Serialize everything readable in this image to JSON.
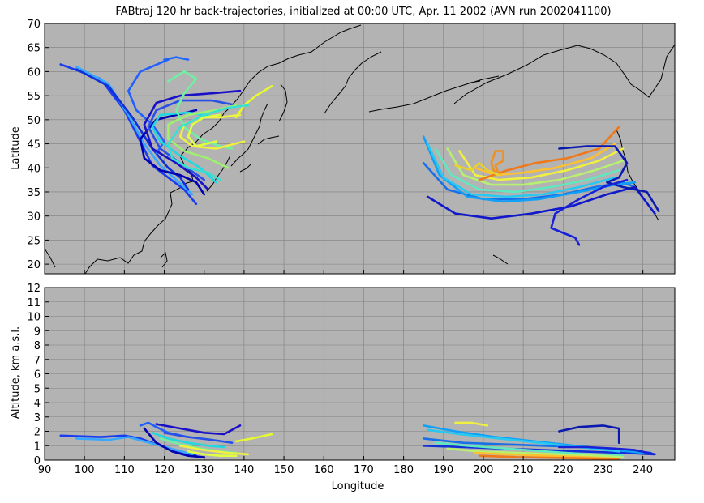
{
  "chart_data": [
    {
      "type": "line",
      "panel": "map",
      "title": "FABtraj 120 hr back-trajectories, initialized at 00:00 UTC, Apr. 11 2002 (AVN run 2002041100)",
      "xlabel": "",
      "ylabel": "Latitude",
      "xlim": [
        90,
        248
      ],
      "ylim": [
        18,
        70
      ],
      "yticks": [
        20,
        25,
        30,
        35,
        40,
        45,
        50,
        55,
        60,
        65,
        70
      ],
      "xticks": [
        90,
        100,
        110,
        120,
        130,
        140,
        150,
        160,
        170,
        180,
        190,
        200,
        210,
        220,
        230,
        240
      ],
      "grid": true,
      "background": "#b3b3b3",
      "coastline_color": "#000000",
      "series": [
        {
          "color": "#1a3cf0",
          "x": [
            94,
            104,
            110,
            114,
            117,
            121,
            125,
            128
          ],
          "y": [
            61.5,
            58.5,
            52,
            45.5,
            40.5,
            38,
            35.5,
            32.5
          ]
        },
        {
          "color": "#38a8ff",
          "x": [
            98,
            106,
            111,
            115,
            119,
            123,
            127
          ],
          "y": [
            61,
            57.5,
            51,
            45,
            40.5,
            37.5,
            34.5
          ]
        },
        {
          "color": "#1030d8",
          "x": [
            98,
            106,
            112,
            117,
            121,
            124,
            126
          ],
          "y": [
            60.5,
            57,
            50.5,
            44,
            40,
            38,
            35.5
          ]
        },
        {
          "color": "#2068ff",
          "x": [
            120,
            123,
            126
          ],
          "y": [
            62.5,
            63,
            62.5
          ]
        },
        {
          "color": "#2060ff",
          "x": [
            121,
            114,
            111,
            113,
            117,
            120,
            118
          ],
          "y": [
            62.5,
            60,
            56,
            52,
            49,
            45.5,
            43
          ]
        },
        {
          "color": "#0000b0",
          "x": [
            128,
            118,
            114,
            115,
            119,
            124,
            128,
            130
          ],
          "y": [
            52,
            50,
            46,
            42,
            39.5,
            38.5,
            37,
            34.5
          ]
        },
        {
          "color": "#1a10c8",
          "x": [
            139,
            132,
            124,
            118,
            115,
            117,
            123,
            128,
            131
          ],
          "y": [
            56,
            55.5,
            55,
            53.5,
            49,
            44,
            41,
            38,
            35.5
          ]
        },
        {
          "color": "#2850e8",
          "x": [
            138,
            132,
            124,
            118,
            116,
            119,
            124,
            130
          ],
          "y": [
            53,
            54,
            54,
            52,
            48.5,
            44,
            41,
            37.5
          ]
        },
        {
          "color": "#20d8e0",
          "x": [
            133,
            126,
            119,
            117,
            119,
            124,
            129,
            133
          ],
          "y": [
            50.5,
            51.5,
            51,
            48.5,
            45.5,
            42.5,
            40,
            37
          ]
        },
        {
          "color": "#70f0a0",
          "x": [
            121,
            125,
            128,
            125,
            123,
            125,
            129,
            134,
            137
          ],
          "y": [
            58,
            60,
            58.5,
            55.5,
            52,
            48.5,
            46,
            44.5,
            44
          ]
        },
        {
          "color": "#a0f070",
          "x": [
            138,
            133,
            126,
            121,
            121,
            125,
            131,
            136
          ],
          "y": [
            53,
            52,
            51,
            49,
            46,
            43.5,
            42,
            40
          ]
        },
        {
          "color": "#f0f040",
          "x": [
            139,
            134,
            129,
            125,
            124,
            127,
            133,
            140
          ],
          "y": [
            51,
            50.5,
            50.5,
            49,
            46.5,
            44.5,
            44,
            45.5
          ]
        },
        {
          "color": "#e8f830",
          "x": [
            147,
            143,
            140,
            138
          ],
          "y": [
            57,
            55,
            53,
            50.5
          ]
        },
        {
          "color": "#e0ff40",
          "x": [
            134,
            130,
            127,
            126,
            128,
            133
          ],
          "y": [
            51,
            50.5,
            49,
            46.5,
            44.5,
            45.5
          ]
        },
        {
          "color": "#38e0d0",
          "x": [
            141,
            136,
            130,
            124,
            121,
            122,
            126,
            131,
            134
          ],
          "y": [
            53,
            52.5,
            51,
            48.5,
            45,
            42,
            40,
            39,
            37.5
          ]
        },
        {
          "color": "#1870e8",
          "x": [
            185,
            191,
            200,
            210,
            220,
            228,
            235,
            238
          ],
          "y": [
            41,
            35.5,
            33.5,
            33.5,
            34.5,
            36,
            37,
            36
          ]
        },
        {
          "color": "#1018c8",
          "x": [
            186,
            193,
            202,
            212,
            222,
            231,
            238,
            243
          ],
          "y": [
            34,
            30.5,
            29.5,
            30.5,
            32,
            34.5,
            36,
            30.5
          ]
        },
        {
          "color": "#10a0f8",
          "x": [
            185,
            189,
            196,
            205,
            214,
            224,
            233,
            238
          ],
          "y": [
            46.5,
            38.5,
            34,
            33,
            33.5,
            35,
            36.5,
            37
          ]
        },
        {
          "color": "#28c8f0",
          "x": [
            186,
            190,
            197,
            206,
            215,
            224,
            233
          ],
          "y": [
            45,
            38,
            34.5,
            34,
            34.5,
            36,
            38
          ]
        },
        {
          "color": "#60e8c0",
          "x": [
            188,
            192,
            199,
            208,
            217,
            226,
            234
          ],
          "y": [
            44,
            38.5,
            35.5,
            35,
            36,
            37.5,
            39.5
          ]
        },
        {
          "color": "#b8f070",
          "x": [
            191,
            195,
            202,
            210,
            219,
            228,
            235
          ],
          "y": [
            44,
            38.5,
            36.5,
            36.5,
            37.5,
            39.5,
            41.5
          ]
        },
        {
          "color": "#f0f040",
          "x": [
            194,
            198,
            204,
            212,
            221,
            229,
            235
          ],
          "y": [
            43.5,
            38.5,
            37.5,
            38,
            39.5,
            41.5,
            44
          ]
        },
        {
          "color": "#fcc030",
          "x": [
            198,
            203,
            210,
            218,
            227,
            233
          ],
          "y": [
            40,
            38.5,
            39,
            40,
            42,
            45
          ]
        },
        {
          "color": "#f07818",
          "x": [
            199,
            206,
            213,
            221,
            229,
            234
          ],
          "y": [
            37.5,
            39.5,
            41,
            42,
            44,
            48.5
          ]
        },
        {
          "color": "#f09020",
          "x": [
            203,
            202,
            203,
            205,
            205,
            203,
            204
          ],
          "y": [
            38.5,
            41,
            43.5,
            43.5,
            41.5,
            40.5,
            38.5
          ]
        },
        {
          "color": "#0a1ab0",
          "x": [
            219,
            226,
            233,
            236,
            234,
            231,
            235,
            241,
            244
          ],
          "y": [
            44,
            44.5,
            44.5,
            41,
            38,
            37,
            36,
            35,
            31
          ]
        },
        {
          "color": "#1820d8",
          "x": [
            236,
            230,
            224,
            218,
            217,
            220,
            223,
            224
          ],
          "y": [
            37.5,
            36,
            33.5,
            30.5,
            27.5,
            26.5,
            25.5,
            24
          ]
        },
        {
          "color": "#e8d030",
          "x": [
            193,
            197,
            199,
            201,
            204
          ],
          "y": [
            40.5,
            39.5,
            41,
            39.5,
            38.5
          ]
        }
      ]
    },
    {
      "type": "line",
      "panel": "altitude",
      "title": "",
      "xlabel": "Longitude",
      "ylabel": "Altitude, km a.s.l.",
      "xlim": [
        90,
        248
      ],
      "ylim": [
        0,
        12
      ],
      "yticks": [
        0,
        1,
        2,
        3,
        4,
        5,
        6,
        7,
        8,
        9,
        10,
        11,
        12
      ],
      "xticks": [
        90,
        100,
        110,
        120,
        130,
        140,
        150,
        160,
        170,
        180,
        190,
        200,
        210,
        220,
        230,
        240
      ],
      "grid": true,
      "background": "#b3b3b3",
      "series": [
        {
          "color": "#1a3cf0",
          "x": [
            94,
            104,
            110,
            114,
            117,
            121,
            125,
            128
          ],
          "y": [
            1.7,
            1.6,
            1.7,
            1.5,
            1.2,
            0.8,
            0.5,
            0.3
          ]
        },
        {
          "color": "#38a8ff",
          "x": [
            98,
            106,
            111,
            115,
            119,
            123,
            127
          ],
          "y": [
            1.5,
            1.4,
            1.6,
            1.3,
            1.0,
            0.7,
            0.4
          ]
        },
        {
          "color": "#2060ff",
          "x": [
            114,
            116,
            118,
            121,
            126
          ],
          "y": [
            2.4,
            2.6,
            2.3,
            1.9,
            1.6
          ]
        },
        {
          "color": "#1a10c8",
          "x": [
            118,
            124,
            130,
            135,
            139
          ],
          "y": [
            2.5,
            2.2,
            1.9,
            1.8,
            2.4
          ]
        },
        {
          "color": "#0000b0",
          "x": [
            115,
            118,
            122,
            126,
            130
          ],
          "y": [
            2.2,
            1.2,
            0.6,
            0.3,
            0.2
          ]
        },
        {
          "color": "#20d8e0",
          "x": [
            117,
            121,
            126,
            131,
            135
          ],
          "y": [
            1.9,
            1.5,
            1.2,
            1.0,
            0.9
          ]
        },
        {
          "color": "#70f0a0",
          "x": [
            119,
            124,
            129,
            134,
            138
          ],
          "y": [
            1.5,
            1.1,
            0.8,
            0.6,
            0.5
          ]
        },
        {
          "color": "#f0f040",
          "x": [
            124,
            130,
            136,
            141
          ],
          "y": [
            1.0,
            0.7,
            0.5,
            0.4
          ]
        },
        {
          "color": "#e8f830",
          "x": [
            138,
            142,
            147
          ],
          "y": [
            1.3,
            1.5,
            1.8
          ]
        },
        {
          "color": "#e0ff40",
          "x": [
            126,
            130,
            134,
            138
          ],
          "y": [
            0.6,
            0.4,
            0.3,
            0.3
          ]
        },
        {
          "color": "#2850e8",
          "x": [
            120,
            126,
            132,
            137
          ],
          "y": [
            1.9,
            1.6,
            1.4,
            1.2
          ]
        },
        {
          "color": "#1030d8",
          "x": [
            185,
            195,
            205,
            215,
            225,
            235,
            243
          ],
          "y": [
            1.0,
            0.9,
            0.8,
            0.7,
            0.6,
            0.5,
            0.4
          ]
        },
        {
          "color": "#1870e8",
          "x": [
            185,
            195,
            205,
            215,
            225,
            235,
            242
          ],
          "y": [
            1.5,
            1.2,
            1.1,
            1.0,
            0.9,
            0.7,
            0.5
          ]
        },
        {
          "color": "#10a0f8",
          "x": [
            185,
            193,
            203,
            213,
            223,
            233,
            240
          ],
          "y": [
            2.4,
            2.0,
            1.6,
            1.3,
            1.0,
            0.7,
            0.5
          ]
        },
        {
          "color": "#28c8f0",
          "x": [
            186,
            194,
            204,
            214,
            224,
            234
          ],
          "y": [
            2.1,
            1.8,
            1.5,
            1.2,
            0.9,
            0.6
          ]
        },
        {
          "color": "#60e8c0",
          "x": [
            188,
            196,
            206,
            216,
            226,
            235
          ],
          "y": [
            1.2,
            1.0,
            0.8,
            0.6,
            0.4,
            0.3
          ]
        },
        {
          "color": "#b8f070",
          "x": [
            191,
            199,
            209,
            219,
            229,
            235
          ],
          "y": [
            0.8,
            0.6,
            0.5,
            0.4,
            0.3,
            0.2
          ]
        },
        {
          "color": "#f0f040",
          "x": [
            193,
            197,
            201
          ],
          "y": [
            2.6,
            2.6,
            2.4
          ]
        },
        {
          "color": "#fcc030",
          "x": [
            198,
            206,
            216,
            226,
            233
          ],
          "y": [
            0.5,
            0.4,
            0.3,
            0.2,
            0.1
          ]
        },
        {
          "color": "#f07818",
          "x": [
            199,
            209,
            219,
            229,
            234
          ],
          "y": [
            0.3,
            0.2,
            0.15,
            0.1,
            0.05
          ]
        },
        {
          "color": "#0a1ab0",
          "x": [
            219,
            224,
            230,
            234,
            234
          ],
          "y": [
            2.0,
            2.3,
            2.4,
            2.2,
            1.2
          ]
        },
        {
          "color": "#1820d8",
          "x": [
            219,
            226,
            233,
            238,
            243
          ],
          "y": [
            0.9,
            0.9,
            0.8,
            0.7,
            0.4
          ]
        }
      ]
    }
  ]
}
